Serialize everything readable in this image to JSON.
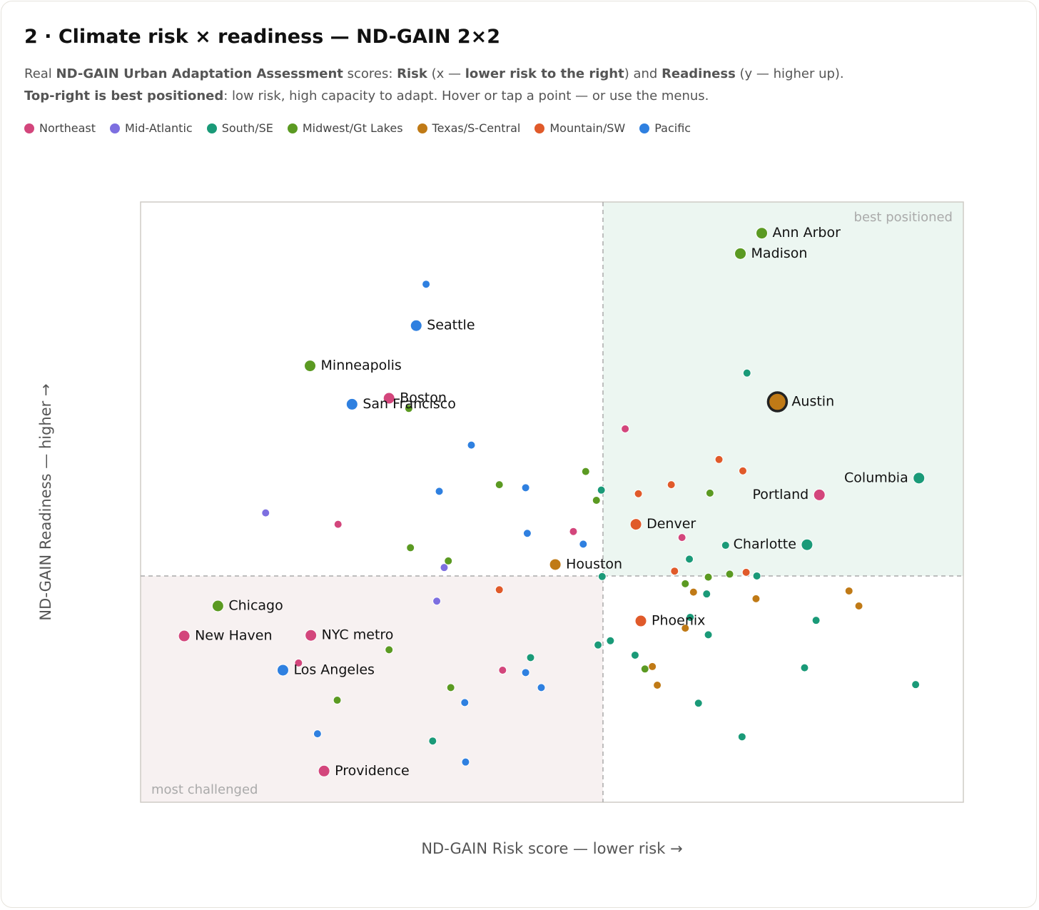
{
  "chart_data": {
    "type": "scatter",
    "title": "2 · Climate risk × readiness — ND-GAIN 2×2",
    "subtitle": [
      [
        {
          "text": "Real ",
          "bold": false
        },
        {
          "text": "ND-GAIN Urban Adaptation Assessment",
          "bold": true
        },
        {
          "text": " scores: ",
          "bold": false
        },
        {
          "text": "Risk",
          "bold": true
        },
        {
          "text": " (x — ",
          "bold": false
        },
        {
          "text": "lower risk to the right",
          "bold": true
        },
        {
          "text": ") and ",
          "bold": false
        },
        {
          "text": "Readiness",
          "bold": true
        },
        {
          "text": " (y — higher up).",
          "bold": false
        }
      ],
      [
        {
          "text": "Top-right is best positioned",
          "bold": true
        },
        {
          "text": ": low risk, high capacity to adapt. Hover or tap a point — or use the menus.",
          "bold": false
        }
      ]
    ],
    "x_label": "ND-GAIN Risk score — lower risk →",
    "y_label": "ND-GAIN Readiness — higher →",
    "quadrant_labels": {
      "top_right": "best positioned",
      "bottom_left": "most challenged"
    },
    "xlim": [
      0,
      100
    ],
    "ylim": [
      0,
      100
    ],
    "x_split": 56.2,
    "y_split": 37.7,
    "selected": "Austin",
    "series": [
      {
        "name": "Northeast",
        "color": "#d3467c",
        "labels": [
          "Boston",
          "Portland",
          "New Haven",
          "NYC metro",
          "Providence",
          null,
          null,
          null,
          null,
          null,
          null
        ],
        "x": [
          30.2,
          82.5,
          5.3,
          20.7,
          22.3,
          58.9,
          24.0,
          52.6,
          65.8,
          19.2,
          44.0
        ],
        "y": [
          67.3,
          51.2,
          27.7,
          27.8,
          5.2,
          62.2,
          46.3,
          45.1,
          44.1,
          23.2,
          22.0
        ]
      },
      {
        "name": "Mid-Atlantic",
        "color": "#7d6fe0",
        "labels": [
          null,
          null,
          null
        ],
        "x": [
          15.2,
          36.9,
          36.0
        ],
        "y": [
          48.2,
          39.1,
          33.5
        ]
      },
      {
        "name": "South/SE",
        "color": "#1a9a78",
        "labels": [
          "Columbia",
          "Charlotte",
          null,
          null,
          null,
          null,
          null,
          null,
          null,
          null,
          null,
          null,
          null,
          null,
          null,
          null,
          null,
          null,
          null,
          null,
          null
        ],
        "x": [
          94.6,
          81.0,
          73.7,
          56.0,
          71.1,
          66.7,
          56.1,
          74.9,
          68.8,
          66.8,
          82.1,
          69.0,
          57.1,
          55.6,
          60.1,
          47.4,
          80.7,
          94.2,
          67.8,
          73.1,
          35.5
        ],
        "y": [
          54.0,
          42.9,
          71.5,
          52.0,
          42.8,
          40.5,
          37.6,
          37.7,
          34.7,
          30.8,
          30.3,
          27.9,
          26.9,
          26.2,
          24.5,
          24.1,
          22.4,
          19.6,
          16.5,
          10.9,
          10.2
        ]
      },
      {
        "name": "Midwest/Gt Lakes",
        "color": "#5b9a22",
        "labels": [
          "Ann Arbor",
          "Madison",
          "Minneapolis",
          "Chicago",
          null,
          null,
          null,
          null,
          null,
          null,
          null,
          null,
          null,
          null,
          null,
          null,
          null,
          null
        ],
        "x": [
          75.5,
          72.9,
          20.6,
          9.4,
          32.6,
          54.1,
          43.6,
          69.2,
          55.4,
          32.8,
          37.4,
          69.0,
          71.6,
          66.2,
          30.2,
          61.3,
          37.7,
          23.9
        ],
        "y": [
          94.8,
          91.4,
          72.7,
          32.7,
          65.6,
          55.1,
          52.9,
          51.5,
          50.3,
          42.4,
          40.2,
          37.5,
          38.0,
          36.4,
          25.4,
          22.2,
          19.1,
          17.0
        ]
      },
      {
        "name": "Texas/S-Central",
        "color": "#c07a16",
        "labels": [
          "Austin",
          "Houston",
          null,
          null,
          null,
          null,
          null,
          null,
          null
        ],
        "x": [
          77.4,
          50.4,
          67.2,
          86.1,
          74.8,
          87.3,
          66.2,
          62.2,
          62.8
        ],
        "y": [
          66.7,
          39.6,
          35.0,
          35.2,
          33.9,
          32.7,
          29.0,
          22.6,
          19.5
        ]
      },
      {
        "name": "Mountain/SW",
        "color": "#e05a2a",
        "labels": [
          "Denver",
          "Phoenix",
          null,
          null,
          null,
          null,
          null,
          null,
          null
        ],
        "x": [
          60.2,
          60.8,
          70.3,
          73.2,
          60.5,
          64.5,
          64.9,
          73.6,
          43.6
        ],
        "y": [
          46.3,
          30.2,
          57.1,
          55.2,
          51.4,
          52.9,
          38.5,
          38.3,
          35.4
        ]
      },
      {
        "name": "Pacific",
        "color": "#2f80e0",
        "labels": [
          "Seattle",
          "San Francisco",
          "Los Angeles",
          null,
          null,
          null,
          null,
          null,
          null,
          null,
          null,
          null,
          null,
          null
        ],
        "x": [
          33.5,
          25.7,
          17.3,
          34.7,
          40.2,
          46.8,
          36.3,
          47.0,
          53.8,
          46.8,
          48.7,
          39.4,
          21.5,
          39.5
        ],
        "y": [
          79.4,
          66.3,
          22.0,
          86.3,
          59.5,
          52.4,
          51.8,
          44.8,
          43.0,
          21.6,
          19.1,
          16.6,
          11.4,
          6.7
        ]
      }
    ]
  }
}
